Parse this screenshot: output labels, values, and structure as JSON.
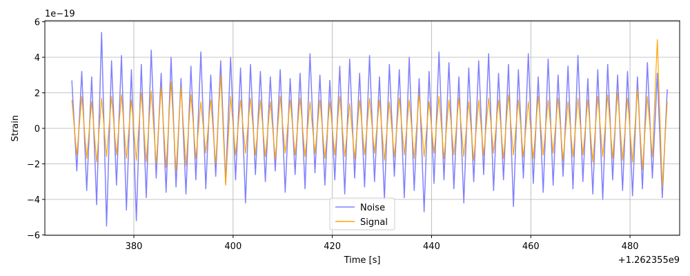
{
  "chart_data": {
    "type": "line",
    "xlabel": "Time [s]",
    "ylabel": "Strain",
    "x_offset_text": "+1.262355e9",
    "y_offset_text": "1e−19",
    "x": [
      367.5,
      368.5,
      369.5,
      370.5,
      371.5,
      372.5,
      373.5,
      374.5,
      375.5,
      376.5,
      377.5,
      378.5,
      379.5,
      380.5,
      381.5,
      382.5,
      383.5,
      384.5,
      385.5,
      386.5,
      387.5,
      388.5,
      389.5,
      390.5,
      391.5,
      392.5,
      393.5,
      394.5,
      395.5,
      396.5,
      397.5,
      398.5,
      399.5,
      400.5,
      401.5,
      402.5,
      403.5,
      404.5,
      405.5,
      406.5,
      407.5,
      408.5,
      409.5,
      410.5,
      411.5,
      412.5,
      413.5,
      414.5,
      415.5,
      416.5,
      417.5,
      418.5,
      419.5,
      420.5,
      421.5,
      422.5,
      423.5,
      424.5,
      425.5,
      426.5,
      427.5,
      428.5,
      429.5,
      430.5,
      431.5,
      432.5,
      433.5,
      434.5,
      435.5,
      436.5,
      437.5,
      438.5,
      439.5,
      440.5,
      441.5,
      442.5,
      443.5,
      444.5,
      445.5,
      446.5,
      447.5,
      448.5,
      449.5,
      450.5,
      451.5,
      452.5,
      453.5,
      454.5,
      455.5,
      456.5,
      457.5,
      458.5,
      459.5,
      460.5,
      461.5,
      462.5,
      463.5,
      464.5,
      465.5,
      466.5,
      467.5,
      468.5,
      469.5,
      470.5,
      471.5,
      472.5,
      473.5,
      474.5,
      475.5,
      476.5,
      477.5,
      478.5,
      479.5,
      480.5,
      481.5,
      482.5,
      483.5,
      484.5,
      485.5,
      486.5,
      487.5
    ],
    "series": [
      {
        "name": "Noise",
        "color": "#8080ff",
        "values": [
          2.7,
          -2.4,
          3.2,
          -3.5,
          2.9,
          -4.3,
          5.4,
          -5.5,
          3.8,
          -3.2,
          4.1,
          -4.6,
          3.3,
          -5.2,
          3.6,
          -3.9,
          4.4,
          -2.8,
          3.1,
          -3.6,
          4.0,
          -3.3,
          2.8,
          -3.7,
          3.5,
          -2.9,
          4.3,
          -3.4,
          3.0,
          -2.7,
          3.8,
          -3.1,
          4.0,
          -2.9,
          3.4,
          -4.2,
          3.6,
          -2.6,
          3.2,
          -3.0,
          2.9,
          -2.4,
          3.3,
          -3.6,
          2.8,
          -2.6,
          3.1,
          -3.4,
          4.2,
          -2.5,
          3.0,
          -3.2,
          2.7,
          -2.9,
          3.5,
          -3.7,
          3.9,
          -2.8,
          3.1,
          -3.3,
          4.1,
          -3.0,
          2.9,
          -4.0,
          3.6,
          -2.7,
          3.3,
          -3.9,
          4.0,
          -3.5,
          2.8,
          -4.7,
          3.2,
          -3.1,
          4.3,
          -2.9,
          3.7,
          -3.4,
          2.9,
          -4.2,
          3.4,
          -3.0,
          3.8,
          -2.6,
          4.2,
          -3.5,
          3.1,
          -2.9,
          3.6,
          -4.4,
          3.3,
          -2.8,
          4.2,
          -3.1,
          2.9,
          -3.6,
          3.9,
          -3.2,
          3.0,
          -2.7,
          3.5,
          -3.4,
          4.1,
          -3.0,
          2.8,
          -3.7,
          3.3,
          -4.0,
          3.6,
          -2.9,
          3.0,
          -3.5,
          3.2,
          -3.8,
          2.9,
          -3.4,
          3.7,
          -2.8,
          3.1,
          -3.9,
          2.2
        ]
      },
      {
        "name": "Signal",
        "color": "#ffa500",
        "values": [
          1.6,
          -1.5,
          1.8,
          -1.7,
          1.5,
          -1.9,
          1.7,
          -1.6,
          1.8,
          -1.5,
          1.9,
          -1.7,
          1.6,
          -1.8,
          2.0,
          -1.9,
          2.1,
          -2.0,
          2.3,
          -2.2,
          2.6,
          -2.4,
          2.3,
          -2.1,
          1.9,
          -1.7,
          1.5,
          -1.4,
          1.6,
          -2.0,
          3.0,
          -3.2,
          1.8,
          -1.5,
          1.6,
          -1.4,
          1.7,
          -1.5,
          1.6,
          -1.6,
          1.5,
          -1.7,
          1.8,
          -1.4,
          1.6,
          -1.5,
          1.7,
          -1.6,
          1.5,
          -1.4,
          1.6,
          -1.7,
          1.5,
          -1.5,
          1.8,
          -1.6,
          1.4,
          -1.7,
          1.6,
          -1.5,
          1.7,
          -1.4,
          1.6,
          -1.8,
          1.5,
          -1.6,
          1.7,
          -1.5,
          1.6,
          -1.7,
          1.9,
          -1.6,
          1.5,
          -1.4,
          1.8,
          -1.7,
          1.6,
          -1.5,
          1.7,
          -1.6,
          1.5,
          -1.8,
          1.6,
          -1.5,
          1.7,
          -1.4,
          1.6,
          -1.7,
          1.9,
          -1.5,
          1.6,
          -1.6,
          1.5,
          -1.7,
          1.8,
          -1.5,
          1.6,
          -1.4,
          1.7,
          -1.8,
          1.5,
          -1.6,
          1.7,
          -1.5,
          1.6,
          -1.9,
          1.8,
          -1.6,
          1.9,
          -1.7,
          2.0,
          -1.8,
          1.7,
          -1.9,
          2.2,
          -2.3,
          1.8,
          -1.6,
          5.0,
          -3.3,
          1.5
        ]
      }
    ],
    "xlim": [
      362.06,
      490.0
    ],
    "xticks": [
      380,
      400,
      420,
      440,
      460,
      480
    ],
    "ylim": [
      -6.02,
      6.06
    ],
    "yticks": [
      {
        "value": -6,
        "label": "−6"
      },
      {
        "value": -4,
        "label": "−4"
      },
      {
        "value": -2,
        "label": "−2"
      },
      0,
      2,
      4,
      6
    ],
    "grid": true,
    "legend": "lower center"
  }
}
